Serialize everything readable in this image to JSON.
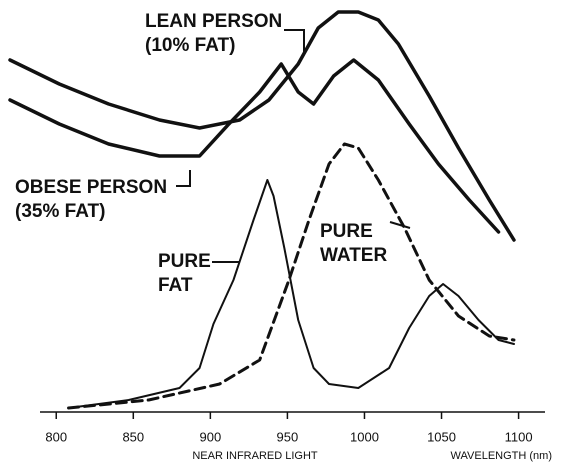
{
  "chart_data": {
    "type": "line",
    "x_labels": [
      "NEAR INFRARED LIGHT",
      "WAVELENGTH (nm)"
    ],
    "annotations": [
      [
        "LEAN PERSON",
        "(10% FAT)"
      ],
      [
        "OBESE PERSON",
        "(35% FAT)"
      ],
      [
        "PURE",
        "FAT"
      ],
      [
        "PURE",
        "WATER"
      ]
    ],
    "xlim": [
      770,
      1110
    ],
    "xticks": [
      800,
      850,
      900,
      950,
      1000,
      1050,
      1100
    ],
    "ylim": [
      0,
      100
    ],
    "series": [
      {
        "color": "#111111",
        "width": 3.5,
        "dashed": false,
        "x": [
          770,
          802,
          834,
          867,
          893,
          919,
          938,
          957,
          970,
          983,
          996,
          1009,
          1022,
          1042,
          1061,
          1081,
          1097
        ],
        "values": [
          88,
          82,
          77,
          73,
          71,
          73,
          78,
          87,
          96,
          100,
          100,
          98,
          92,
          79,
          66,
          53,
          43
        ]
      },
      {
        "color": "#111111",
        "width": 3.5,
        "dashed": false,
        "x": [
          770,
          802,
          834,
          867,
          893,
          912,
          932,
          946,
          957,
          967,
          980,
          993,
          1009,
          1029,
          1048,
          1068,
          1087
        ],
        "values": [
          78,
          72,
          67,
          64,
          64,
          72,
          80,
          87,
          80,
          77,
          84,
          88,
          83,
          72,
          62,
          53,
          45
        ]
      },
      {
        "color": "#111111",
        "width": 2,
        "dashed": false,
        "x": [
          808,
          847,
          880,
          893,
          902,
          915,
          928,
          937,
          941,
          948,
          957,
          967,
          977,
          996,
          1016,
          1029,
          1042,
          1051,
          1061,
          1074,
          1087,
          1097
        ],
        "values": [
          1,
          3,
          6,
          11,
          22,
          33,
          48,
          58,
          54,
          41,
          23,
          11,
          7,
          6,
          11,
          21,
          29,
          32,
          29,
          23,
          18,
          17
        ]
      },
      {
        "color": "#111111",
        "width": 3,
        "dashed": true,
        "x": [
          808,
          860,
          906,
          932,
          951,
          964,
          977,
          987,
          996,
          1009,
          1026,
          1042,
          1061,
          1081,
          1097
        ],
        "values": [
          1,
          3,
          7,
          13,
          33,
          48,
          62,
          67,
          66,
          58,
          46,
          33,
          24,
          19,
          18
        ]
      }
    ]
  }
}
